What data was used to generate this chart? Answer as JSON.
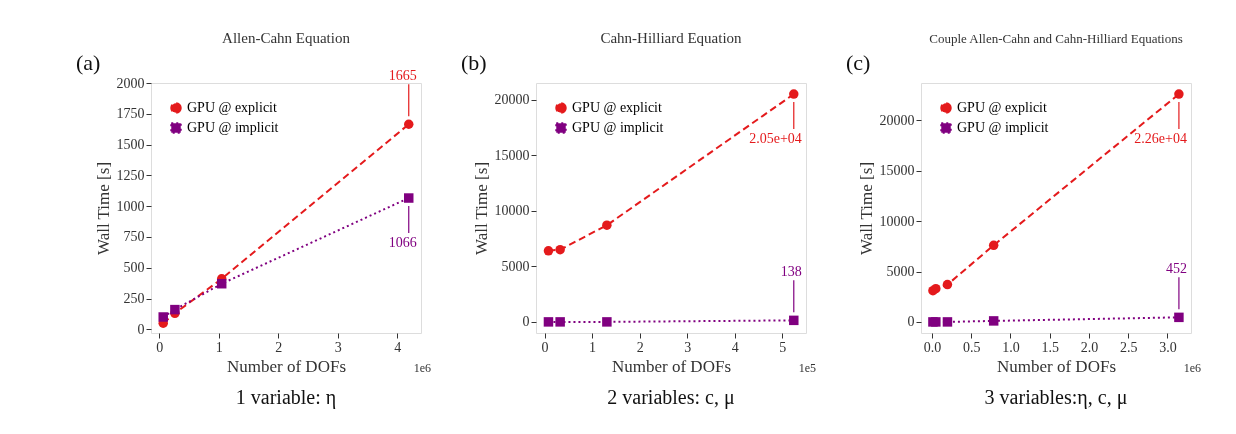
{
  "chart_data": [
    {
      "type": "line",
      "title": "Allen-Cahn Equation",
      "subtitle": "1 variable: η",
      "xlabel": "Number of DOFs",
      "ylabel": "Wall Time [s]",
      "x": [
        0.0655,
        0.262,
        1.049,
        4.194
      ],
      "series": [
        {
          "name": "GPU @ explicit",
          "color": "#e41a1c",
          "values": [
            50,
            130,
            410,
            1665
          ],
          "marker": "circle",
          "line_style": "dashed"
        },
        {
          "name": "GPU @ implicit",
          "color": "#800080",
          "values": [
            100,
            160,
            370,
            1066
          ],
          "marker": "square",
          "line_style": "dotted"
        }
      ],
      "xlim": [
        -0.14,
        4.4
      ],
      "ylim": [
        -30,
        2000
      ],
      "xticks": [
        0,
        1,
        2,
        3,
        4
      ],
      "yticks": [
        0,
        250,
        500,
        750,
        1000,
        1250,
        1500,
        1750,
        2000
      ],
      "annotations": [
        "(a)",
        "1e6",
        {
          "text": "1665",
          "x": 4.194,
          "y": 1665
        },
        {
          "text": "1066",
          "x": 4.194,
          "y": 1066
        }
      ],
      "legend": "top left",
      "grid": false
    },
    {
      "type": "line",
      "title": "Cahn-Hilliard Equation",
      "subtitle": "2 variables: c, μ",
      "xlabel": "Number of DOFs",
      "ylabel": "Wall Time [s]",
      "x": [
        0.082,
        0.328,
        1.311,
        5.243
      ],
      "series": [
        {
          "name": "GPU @ explicit",
          "color": "#e41a1c",
          "values": [
            6400,
            6500,
            8700,
            20500
          ],
          "marker": "circle",
          "line_style": "dashed"
        },
        {
          "name": "GPU @ implicit",
          "color": "#800080",
          "values": [
            0,
            0,
            0,
            138
          ],
          "marker": "square",
          "line_style": "dotted"
        }
      ],
      "xlim": [
        -0.18,
        5.5
      ],
      "ylim": [
        -1000,
        21500
      ],
      "xticks": [
        0,
        1,
        2,
        3,
        4,
        5
      ],
      "yticks": [
        0,
        5000,
        10000,
        15000,
        20000
      ],
      "annotations": [
        "(b)",
        "1e5",
        {
          "text": "2.05e+04",
          "x": 5.243,
          "y": 20500
        },
        {
          "text": "138",
          "x": 5.243,
          "y": 138
        }
      ],
      "legend": "top left",
      "grid": false
    },
    {
      "type": "line",
      "title": "Couple Allen-Cahn and Cahn-Hilliard Equations",
      "subtitle": "3 variables:η, c, μ",
      "xlabel": "Number of DOFs",
      "ylabel": "Wall Time [s]",
      "x": [
        0.012,
        0.049,
        0.197,
        0.786,
        3.146
      ],
      "series": [
        {
          "name": "GPU @ explicit",
          "color": "#e41a1c",
          "values": [
            3100,
            3300,
            3700,
            7600,
            22600
          ],
          "marker": "circle",
          "line_style": "dashed"
        },
        {
          "name": "GPU @ implicit",
          "color": "#800080",
          "values": [
            0,
            0,
            0,
            100,
            452
          ],
          "marker": "square",
          "line_style": "dotted"
        }
      ],
      "xlim": [
        -0.14,
        3.3
      ],
      "ylim": [
        -1100,
        23700
      ],
      "xticks": [
        {
          "value": 0,
          "label": "0.0"
        },
        0.5,
        {
          "value": 1,
          "label": "1.0"
        },
        1.5,
        {
          "value": 2,
          "label": "2.0"
        },
        2.5,
        {
          "value": 3,
          "label": "3.0"
        }
      ],
      "yticks": [
        0,
        5000,
        10000,
        15000,
        20000
      ],
      "annotations": [
        "(c)",
        "1e6",
        {
          "text": "2.26e+04",
          "x": 3.146,
          "y": 22600
        },
        {
          "text": "452",
          "x": 3.146,
          "y": 452
        }
      ],
      "legend": "top left",
      "grid": false
    }
  ]
}
